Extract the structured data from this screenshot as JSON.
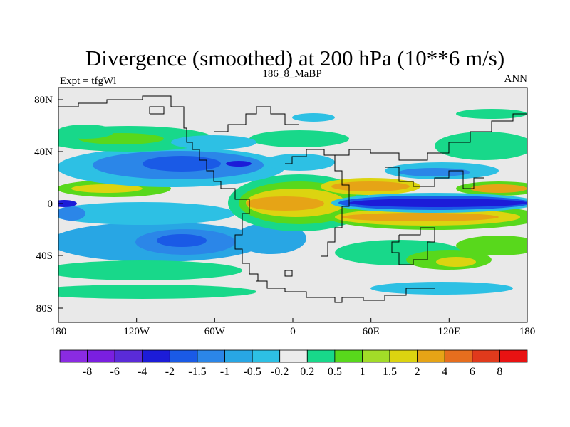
{
  "title": "Divergence (smoothed) at 200 hPa (10**6 m/s)",
  "left_label": "Expt = tfgWl",
  "center_label": "186_8_MaBP",
  "right_label": "ANN",
  "lat_ticks": [
    "80N",
    "40N",
    "0",
    "40S",
    "80S"
  ],
  "lon_ticks": [
    "180",
    "120W",
    "60W",
    "0",
    "60E",
    "120E",
    "180"
  ],
  "colorbar": {
    "labels": [
      "-8",
      "-6",
      "-4",
      "-2",
      "-1.5",
      "-1",
      "-0.5",
      "-0.2",
      "0.2",
      "0.5",
      "1",
      "1.5",
      "2",
      "4",
      "6",
      "8"
    ],
    "colors": [
      "#8a2be2",
      "#7a1fe0",
      "#5a2bd8",
      "#1c1cd8",
      "#1a5ae6",
      "#2b86e8",
      "#28a6e4",
      "#2dc0e4",
      "#ececec",
      "#18d88a",
      "#58d81c",
      "#a2dc28",
      "#dcd410",
      "#e6a416",
      "#e66e1e",
      "#e03a1c",
      "#e81212"
    ]
  },
  "map": {
    "background_color": "#e9e9e9",
    "outline_color": "#000000"
  }
}
